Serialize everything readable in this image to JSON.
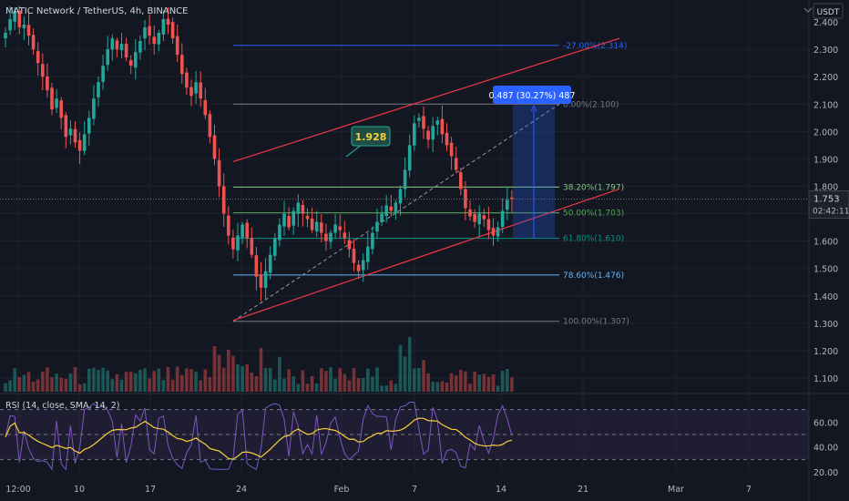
{
  "header": {
    "title": "MATIC Network / TetherUS, 4h, BINANCE",
    "currency_badge": "USDT",
    "currency_icon": "chevron-down-icon"
  },
  "price_marker": {
    "price": "1.753",
    "countdown": "02:42:11"
  },
  "colors": {
    "background": "#131722",
    "up": "#26a69a",
    "down": "#ef5350",
    "grid": "#1e222d",
    "axis_text": "#b2b5be",
    "channel": "#f23645",
    "fib_blue": "#2962ff",
    "rsi_line": "#7e57c2",
    "rsi_sma": "#f7d038"
  },
  "chart_data": [
    {
      "type": "candlestick",
      "title": "MATIC Network / TetherUS, 4h, BINANCE",
      "timeframe": "4h",
      "ylim": [
        1.05,
        2.48
      ],
      "y_ticks": [
        "2.400",
        "2.300",
        "2.200",
        "2.100",
        "2.000",
        "1.900",
        "1.800",
        "1.700",
        "1.600",
        "1.500",
        "1.400",
        "1.300",
        "1.200",
        "1.100"
      ],
      "x_ticks": [
        "12:00",
        "10",
        "17",
        "24",
        "Feb",
        "7",
        "14",
        "21",
        "Mar",
        "7"
      ],
      "current_price": 1.753,
      "fib_levels": [
        {
          "label": "-27.00%(2.314)",
          "value": 2.314,
          "color": "#2962ff"
        },
        {
          "label": "0.00%(2.100)",
          "value": 2.1,
          "color": "#787b86"
        },
        {
          "label": "38.20%(1.797)",
          "value": 1.797,
          "color": "#81c784"
        },
        {
          "label": "50.00%(1.703)",
          "value": 1.703,
          "color": "#4caf50"
        },
        {
          "label": "61.80%(1.610)",
          "value": 1.61,
          "color": "#009688"
        },
        {
          "label": "78.60%(1.476)",
          "value": 1.476,
          "color": "#64b5f6"
        },
        {
          "label": "100.00%(1.307)",
          "value": 1.307,
          "color": "#787b86"
        }
      ],
      "annotations": [
        {
          "text": "1.928",
          "kind": "callout"
        },
        {
          "text": "0.487 (30.27%) 487",
          "kind": "measure"
        }
      ],
      "series_close": [
        2.36,
        2.41,
        2.44,
        2.38,
        2.39,
        2.35,
        2.3,
        2.25,
        2.2,
        2.15,
        2.08,
        2.12,
        2.05,
        1.98,
        2.01,
        1.96,
        1.93,
        1.99,
        2.05,
        2.12,
        2.18,
        2.24,
        2.3,
        2.34,
        2.3,
        2.32,
        2.27,
        2.24,
        2.29,
        2.33,
        2.38,
        2.35,
        2.32,
        2.36,
        2.41,
        2.39,
        2.34,
        2.28,
        2.21,
        2.16,
        2.13,
        2.18,
        2.12,
        2.06,
        1.98,
        1.9,
        1.8,
        1.7,
        1.62,
        1.57,
        1.62,
        1.66,
        1.61,
        1.55,
        1.47,
        1.43,
        1.49,
        1.55,
        1.61,
        1.66,
        1.7,
        1.65,
        1.71,
        1.74,
        1.7,
        1.68,
        1.64,
        1.67,
        1.63,
        1.6,
        1.63,
        1.66,
        1.64,
        1.61,
        1.57,
        1.52,
        1.49,
        1.53,
        1.58,
        1.63,
        1.67,
        1.7,
        1.73,
        1.71,
        1.74,
        1.79,
        1.86,
        1.95,
        2.03,
        2.05,
        2.01,
        1.97,
        2.02,
        2.04,
        1.99,
        1.95,
        1.91,
        1.86,
        1.79,
        1.72,
        1.69,
        1.67,
        1.7,
        1.68,
        1.64,
        1.62,
        1.65,
        1.71,
        1.75,
        1.753
      ],
      "rsi": {
        "label": "RSI (14, close, SMA, 14, 2)",
        "ylim": [
          20,
          80
        ],
        "y_ticks": [
          "60.00",
          "40.00",
          "20.00"
        ],
        "bands": [
          70,
          50,
          30
        ]
      }
    }
  ]
}
